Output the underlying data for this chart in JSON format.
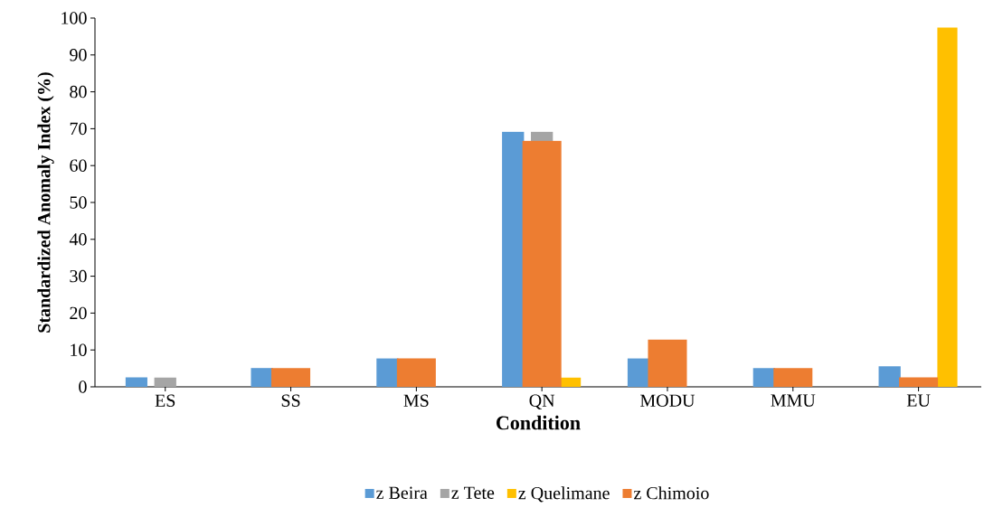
{
  "chart_data": {
    "type": "bar",
    "xlabel": "Condition",
    "ylabel": "Standardized Anomaly Index (%)",
    "categories": [
      "ES",
      "SS",
      "MS",
      "QN",
      "MODU",
      "MMU",
      "EU"
    ],
    "series": [
      {
        "name": "z Beira",
        "color": "#5b9bd5",
        "values": [
          2.6,
          5.1,
          7.7,
          69.2,
          7.7,
          5.1,
          5.6
        ]
      },
      {
        "name": "z Tete",
        "color": "#a5a5a5",
        "values": [
          2.5,
          null,
          null,
          69.2,
          null,
          null,
          null
        ]
      },
      {
        "name": "z Quelimane",
        "color": "#ffc000",
        "values": [
          0,
          0,
          0,
          2.5,
          0,
          0,
          97.4
        ]
      },
      {
        "name": "z Chimoio",
        "color": "#ed7d31",
        "values": [
          0,
          5.1,
          7.7,
          66.7,
          12.8,
          5.1,
          2.6
        ]
      }
    ],
    "ylim": [
      0,
      100
    ],
    "yticks": [
      0,
      10,
      20,
      30,
      40,
      50,
      60,
      70,
      80,
      90,
      100
    ],
    "legend": "bottom"
  }
}
